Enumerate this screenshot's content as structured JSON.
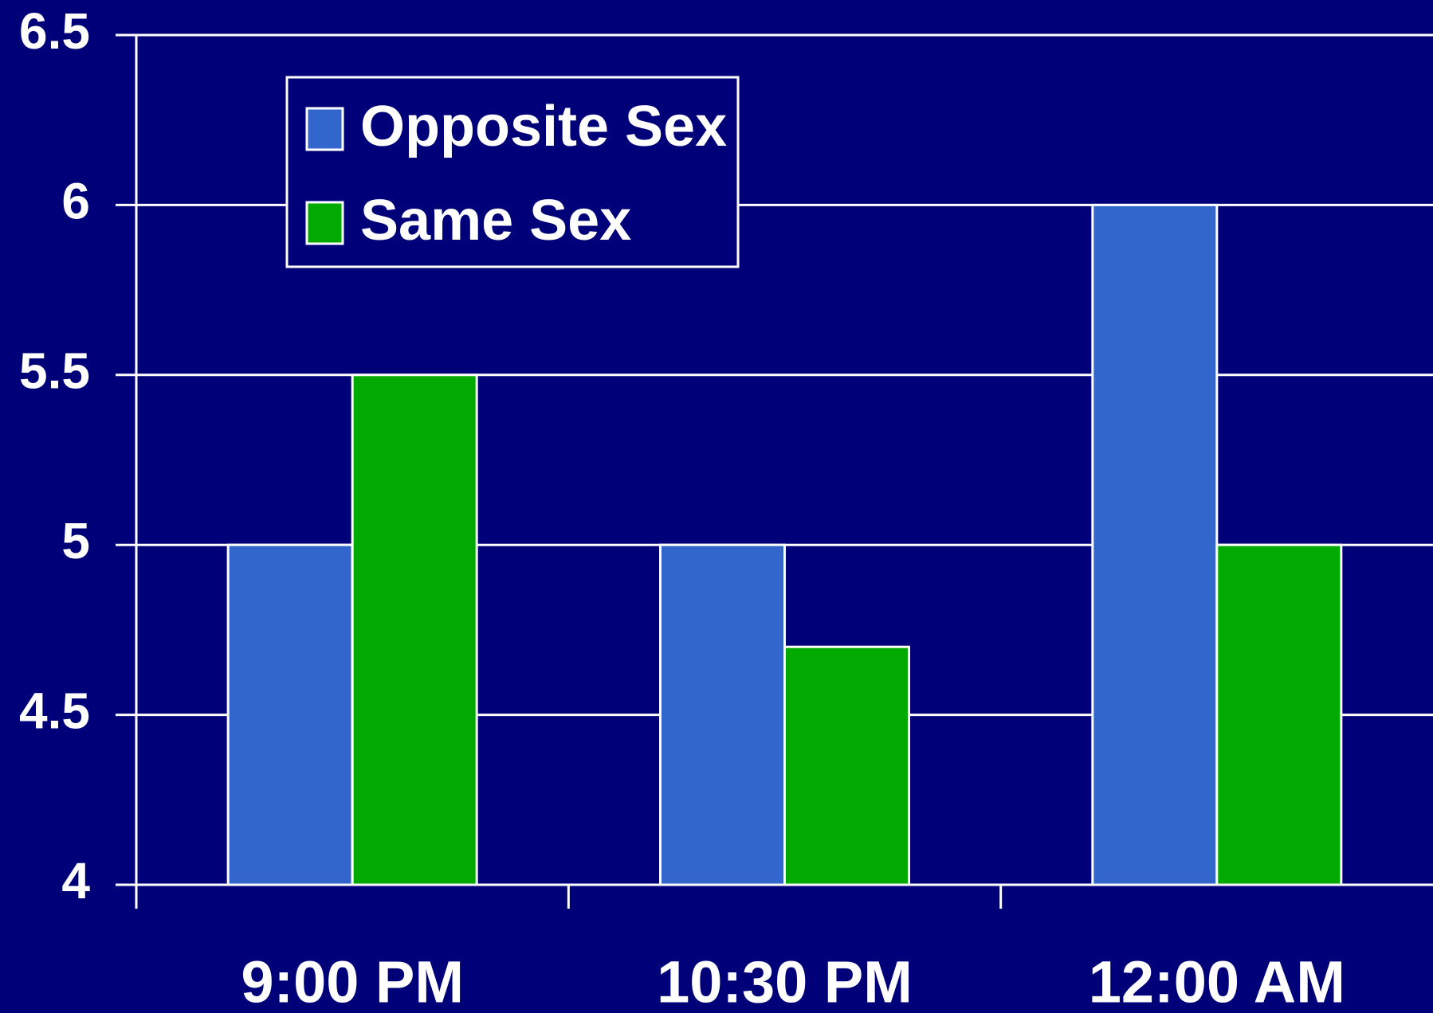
{
  "chart_data": {
    "type": "bar",
    "categories": [
      "9:00 PM",
      "10:30 PM",
      "12:00 AM"
    ],
    "series": [
      {
        "name": "Opposite Sex",
        "color": "#3366cc",
        "values": [
          5,
          5,
          6
        ]
      },
      {
        "name": "Same Sex",
        "color": "#00aa00",
        "values": [
          5.5,
          4.7,
          5
        ]
      }
    ],
    "ylim": [
      4,
      6.5
    ],
    "yticks": [
      4,
      4.5,
      5,
      5.5,
      6,
      6.5
    ],
    "grid": true,
    "legend": "upper left"
  }
}
